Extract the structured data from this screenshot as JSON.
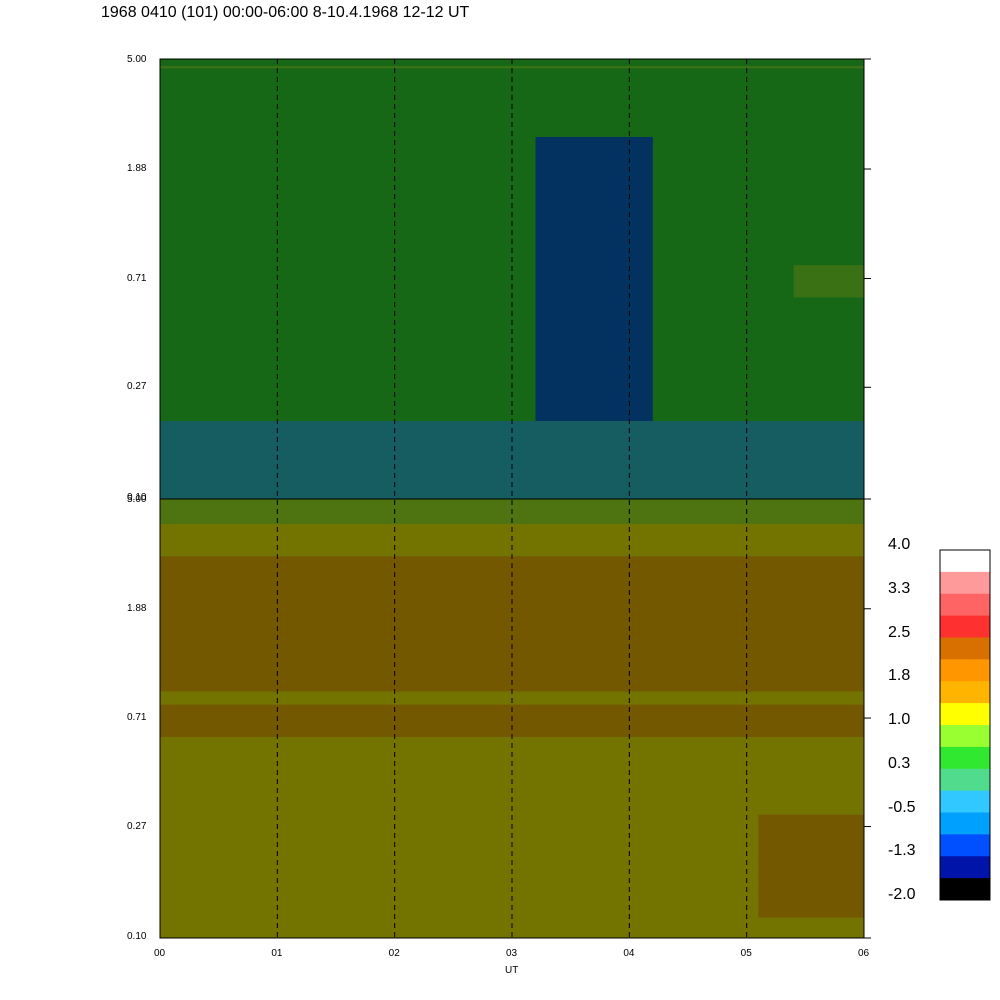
{
  "title": "1968 0410 (101) 00:00-06:00 8-10.4.1968  12-12 UT",
  "chart_data": {
    "type": "heatmap",
    "xlabel": "UT",
    "xticks": [
      "00",
      "01",
      "02",
      "03",
      "04",
      "05",
      "06"
    ],
    "x_range_hours": [
      0,
      6
    ],
    "yscale": "log",
    "ylim": [
      0.1,
      5.0
    ],
    "yticks": [
      "5.00",
      "1.88",
      "0.71",
      "0.27",
      "0.10"
    ],
    "grid": "dashed vertical lines at each hour",
    "panels": [
      {
        "position": "top",
        "dominant_value": 0.3,
        "features": [
          {
            "x_hours": [
              3.2,
              4.2
            ],
            "y": [
              0.2,
              2.5
            ],
            "value": -1.3
          },
          {
            "x_hours": [
              0.0,
              6.0
            ],
            "y": [
              4.6,
              4.7
            ],
            "value": 1.0
          },
          {
            "x_hours": [
              0.0,
              6.0
            ],
            "y": [
              0.1,
              0.2
            ],
            "value": -0.5
          },
          {
            "x_hours": [
              5.4,
              6.0
            ],
            "y": [
              0.6,
              0.8
            ],
            "value": 1.0
          }
        ]
      },
      {
        "position": "bottom",
        "dominant_value": 1.4,
        "features": [
          {
            "x_hours": [
              0.0,
              6.0
            ],
            "y": [
              0.6,
              0.8
            ],
            "value": 1.8
          },
          {
            "x_hours": [
              0.0,
              6.0
            ],
            "y": [
              0.9,
              3.0
            ],
            "value": 1.8
          },
          {
            "x_hours": [
              5.1,
              6.0
            ],
            "y": [
              0.12,
              0.3
            ],
            "value": 1.8
          },
          {
            "x_hours": [
              0.0,
              6.0
            ],
            "y": [
              4.0,
              5.0
            ],
            "value": 0.7
          }
        ]
      }
    ],
    "colorbar": {
      "labels": [
        "4.0",
        "3.3",
        "2.5",
        "1.8",
        "1.0",
        "0.3",
        "-0.5",
        "-1.3",
        "-2.0"
      ],
      "colors": [
        "#ffffff",
        "#ff9a9a",
        "#ff6464",
        "#ff3030",
        "#d87000",
        "#ff9600",
        "#ffb400",
        "#ffff00",
        "#9aff30",
        "#30e830",
        "#50dc8c",
        "#30c8ff",
        "#00a0ff",
        "#0050ff",
        "#0014aa",
        "#000000"
      ]
    }
  }
}
